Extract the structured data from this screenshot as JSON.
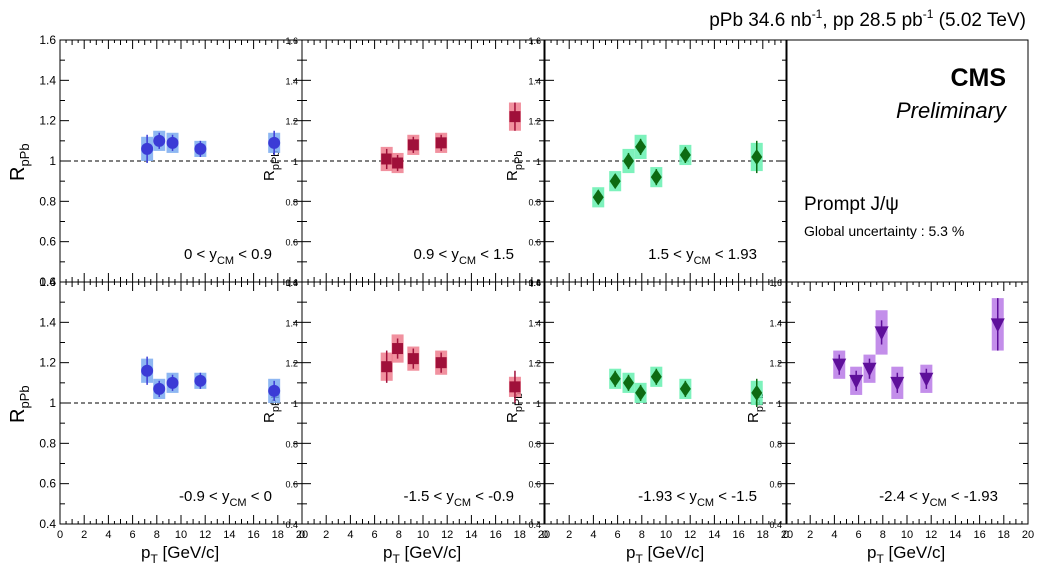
{
  "header": {
    "lumi_text": "pPb 34.6 nb",
    "lumi_sup1": "-1",
    "lumi_text2": ", pp 28.5 pb",
    "lumi_sup2": "-1",
    "lumi_text3": " (5.02 TeV)"
  },
  "info": {
    "experiment": "CMS",
    "status": "Preliminary",
    "particle": "Prompt J/ψ",
    "global_uncertainty": "Global uncertainty : 5.3 %"
  },
  "axes": {
    "ylabel_main": "R",
    "ylabel_sub": "pPb",
    "xlabel_main": "p",
    "xlabel_sub": "T",
    "xlabel_unit": " [GeV/c]"
  },
  "colors": {
    "blue": "#3b3bd6",
    "blue_band": "#7aaaf0",
    "red": "#a0103a",
    "red_band": "#ee7e8e",
    "green": "#0d6b12",
    "green_band": "#66f0b0",
    "purple": "#5e0f9a",
    "purple_band": "#b87ae6"
  },
  "chart_data": [
    {
      "type": "scatter",
      "row": 0,
      "col": 0,
      "rapidity": {
        "pre": "0 < y",
        "sub": "CM",
        "post": " < 0.9"
      },
      "marker": "circle",
      "color": "blue",
      "series": [
        {
          "x": [
            7.2,
            8.2,
            9.3,
            11.6,
            17.7
          ],
          "y": [
            1.06,
            1.1,
            1.09,
            1.06,
            1.09
          ],
          "stat": [
            0.07,
            0.04,
            0.04,
            0.04,
            0.06
          ],
          "syst": [
            0.06,
            0.05,
            0.05,
            0.04,
            0.05
          ]
        }
      ],
      "xlim": [
        0,
        20
      ],
      "ylim": [
        0.4,
        1.6
      ],
      "reference_line": 1
    },
    {
      "type": "scatter",
      "row": 0,
      "col": 1,
      "rapidity": {
        "pre": "0.9 < y",
        "sub": "CM",
        "post": " < 1.5"
      },
      "marker": "square",
      "color": "red",
      "series": [
        {
          "x": [
            7.0,
            7.9,
            9.2,
            11.5,
            17.6
          ],
          "y": [
            1.01,
            0.99,
            1.08,
            1.09,
            1.22
          ],
          "stat": [
            0.05,
            0.04,
            0.04,
            0.04,
            0.07
          ],
          "syst": [
            0.06,
            0.05,
            0.05,
            0.05,
            0.07
          ]
        }
      ],
      "xlim": [
        0,
        20
      ],
      "ylim": [
        0.4,
        1.6
      ],
      "reference_line": 1
    },
    {
      "type": "scatter",
      "row": 0,
      "col": 2,
      "rapidity": {
        "pre": "1.5 < y",
        "sub": "CM",
        "post": " < 1.93"
      },
      "marker": "diamond",
      "color": "green",
      "series": [
        {
          "x": [
            4.4,
            5.8,
            6.9,
            7.9,
            9.2,
            11.6,
            17.5
          ],
          "y": [
            0.82,
            0.9,
            1.0,
            1.07,
            0.92,
            1.03,
            1.02
          ],
          "stat": [
            0.03,
            0.03,
            0.04,
            0.04,
            0.04,
            0.04,
            0.08
          ],
          "syst": [
            0.05,
            0.05,
            0.06,
            0.06,
            0.05,
            0.05,
            0.07
          ]
        }
      ],
      "xlim": [
        0,
        20
      ],
      "ylim": [
        0.4,
        1.6
      ],
      "reference_line": 1
    },
    {
      "type": "scatter",
      "row": 1,
      "col": 0,
      "rapidity": {
        "pre": "-0.9 < y",
        "sub": "CM",
        "post": " < 0"
      },
      "marker": "circle",
      "color": "blue",
      "series": [
        {
          "x": [
            7.2,
            8.2,
            9.3,
            11.6,
            17.7
          ],
          "y": [
            1.16,
            1.07,
            1.1,
            1.11,
            1.06
          ],
          "stat": [
            0.07,
            0.04,
            0.04,
            0.04,
            0.05
          ],
          "syst": [
            0.06,
            0.05,
            0.05,
            0.04,
            0.06
          ]
        }
      ],
      "xlim": [
        0,
        20
      ],
      "ylim": [
        0.4,
        1.6
      ],
      "reference_line": 1
    },
    {
      "type": "scatter",
      "row": 1,
      "col": 1,
      "rapidity": {
        "pre": "-1.5 < y",
        "sub": "CM",
        "post": " < -0.9"
      },
      "marker": "square",
      "color": "red",
      "series": [
        {
          "x": [
            7.0,
            7.9,
            9.2,
            11.5,
            17.6
          ],
          "y": [
            1.18,
            1.27,
            1.22,
            1.2,
            1.08
          ],
          "stat": [
            0.08,
            0.05,
            0.05,
            0.05,
            0.08
          ],
          "syst": [
            0.07,
            0.07,
            0.06,
            0.06,
            0.05
          ]
        }
      ],
      "xlim": [
        0,
        20
      ],
      "ylim": [
        0.4,
        1.6
      ],
      "reference_line": 1
    },
    {
      "type": "scatter",
      "row": 1,
      "col": 2,
      "rapidity": {
        "pre": "-1.93 < y",
        "sub": "CM",
        "post": " < -1.5"
      },
      "marker": "diamond",
      "color": "green",
      "series": [
        {
          "x": [
            5.8,
            6.9,
            7.9,
            9.2,
            11.6,
            17.5
          ],
          "y": [
            1.12,
            1.1,
            1.05,
            1.13,
            1.07,
            1.05
          ],
          "stat": [
            0.04,
            0.04,
            0.04,
            0.04,
            0.04,
            0.07
          ],
          "syst": [
            0.05,
            0.05,
            0.05,
            0.05,
            0.05,
            0.06
          ]
        }
      ],
      "xlim": [
        0,
        20
      ],
      "ylim": [
        0.4,
        1.6
      ],
      "reference_line": 1
    },
    {
      "type": "scatter",
      "row": 1,
      "col": 3,
      "rapidity": {
        "pre": "-2.4 < y",
        "sub": "CM",
        "post": " < -1.93"
      },
      "marker": "triangle-down",
      "color": "purple",
      "series": [
        {
          "x": [
            4.4,
            5.8,
            6.9,
            7.9,
            9.2,
            11.6,
            17.5
          ],
          "y": [
            1.19,
            1.11,
            1.17,
            1.35,
            1.1,
            1.12,
            1.39
          ],
          "stat": [
            0.05,
            0.05,
            0.05,
            0.06,
            0.05,
            0.05,
            0.13
          ],
          "syst": [
            0.07,
            0.07,
            0.07,
            0.11,
            0.08,
            0.07,
            0.13
          ]
        }
      ],
      "xlim": [
        0,
        20
      ],
      "ylim": [
        0.4,
        1.6
      ],
      "reference_line": 1
    }
  ],
  "ticks": {
    "y_labels": [
      "0.4",
      "0.6",
      "0.8",
      "1",
      "1.2",
      "1.4",
      "1.6"
    ],
    "x_labels": [
      "0",
      "2",
      "4",
      "6",
      "8",
      "10",
      "12",
      "14",
      "16",
      "18",
      "20"
    ]
  }
}
